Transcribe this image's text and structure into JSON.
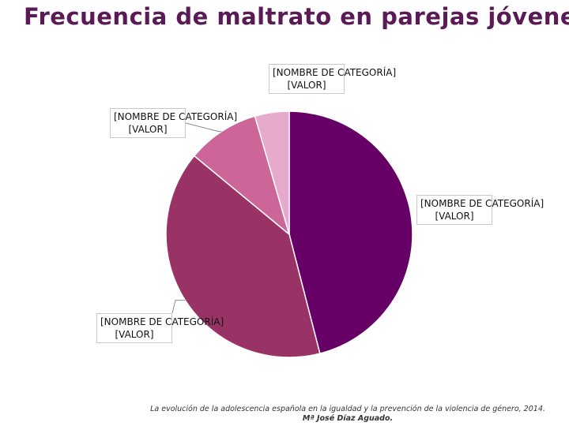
{
  "title": "Frecuencia de maltrato en parejas jóvenes",
  "source": {
    "line1": "La evolución de la adolescencia española en la igualdad y la prevención de la violencia de género, 2014.",
    "line2": "Mª José Díaz Aguado."
  },
  "chart_data": {
    "type": "pie",
    "title": "Frecuencia de maltrato en parejas jóvenes",
    "slices": [
      {
        "category": "[NOMBRE DE CATEGORÍA]",
        "value": "[VALOR]",
        "share": 46,
        "color": "#660066"
      },
      {
        "category": "[NOMBRE DE CATEGORÍA]",
        "value": "[VALOR]",
        "share": 40,
        "color": "#993366"
      },
      {
        "category": "[NOMBRE DE CATEGORÍA]",
        "value": "[VALOR]",
        "share": 9.5,
        "color": "#cc6699"
      },
      {
        "category": "[NOMBRE DE CATEGORÍA]",
        "value": "[VALOR]",
        "share": 4.5,
        "color": "#e6aacc"
      }
    ]
  }
}
